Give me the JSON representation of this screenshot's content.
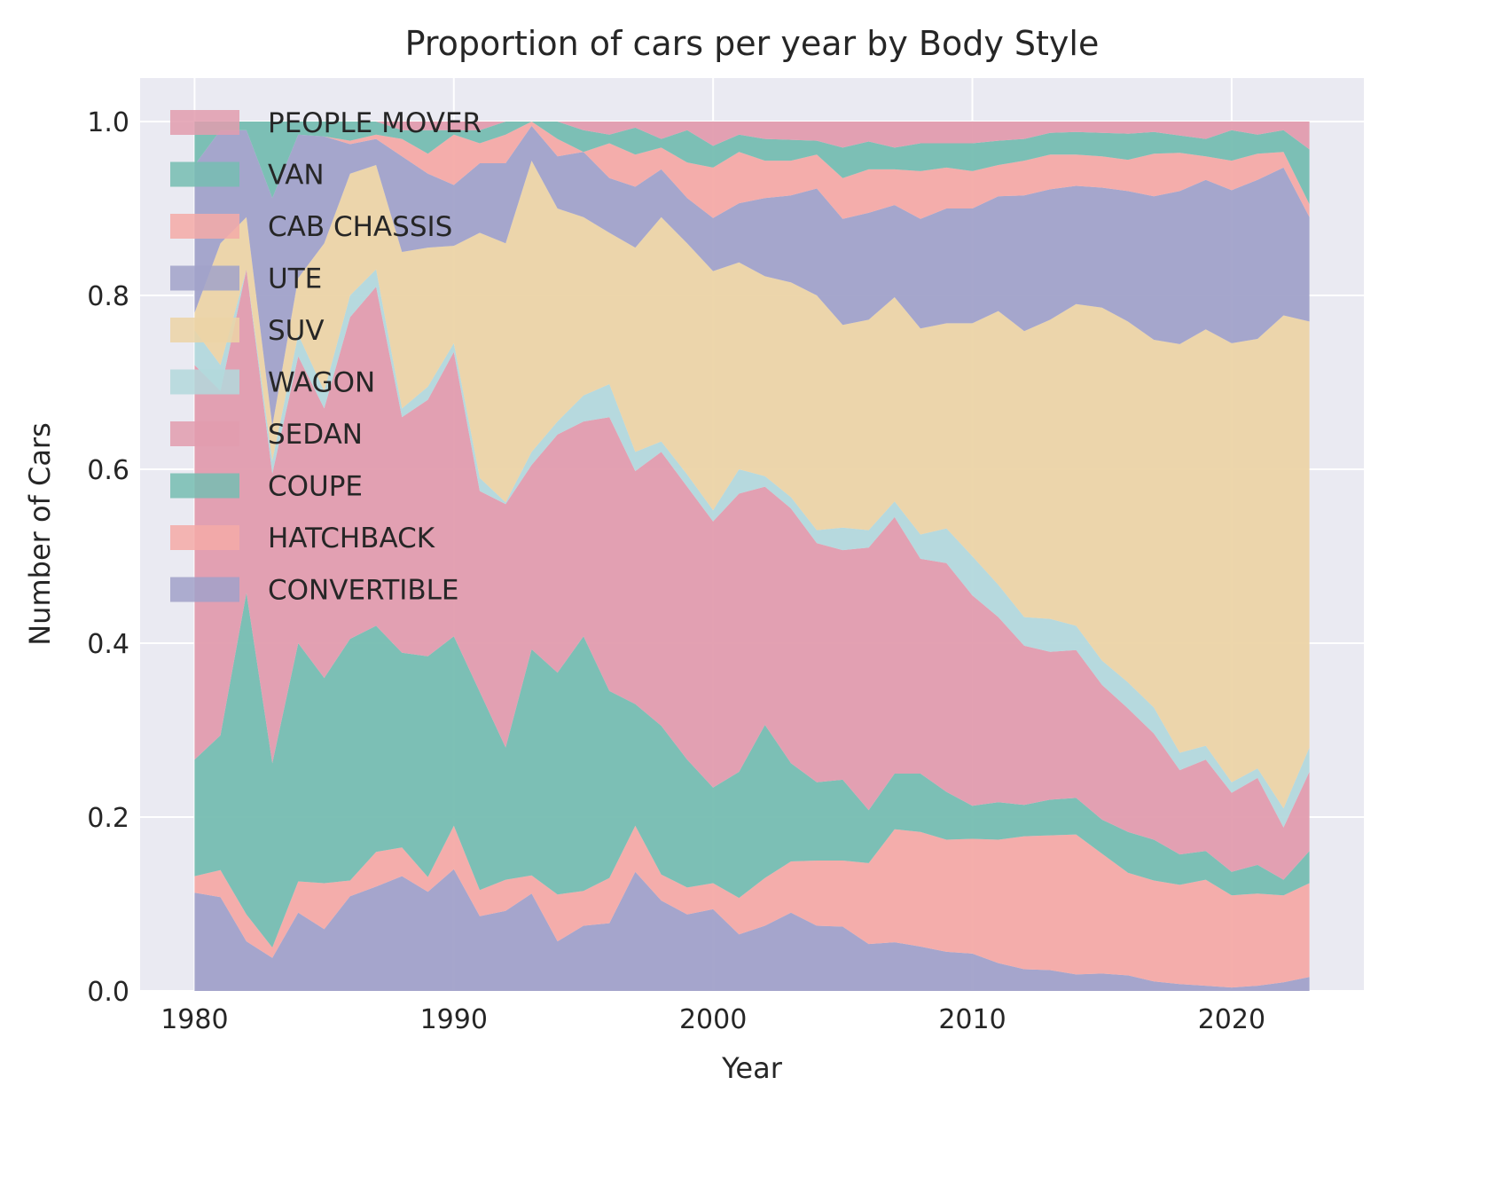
{
  "chart_data": {
    "type": "area",
    "stacked": true,
    "title": "Proportion of cars per year by Body Style",
    "xlabel": "Year",
    "ylabel": "Number of Cars",
    "xlim": [
      1977.9,
      2025.1
    ],
    "ylim": [
      0,
      1.05
    ],
    "xticks": [
      1980,
      1990,
      2000,
      2010,
      2020
    ],
    "yticks": [
      "0.0",
      "0.2",
      "0.4",
      "0.6",
      "0.8",
      "1.0"
    ],
    "grid": true,
    "legend_placement": "upper-left",
    "x": [
      1980,
      1981,
      1982,
      1983,
      1984,
      1985,
      1986,
      1987,
      1988,
      1989,
      1990,
      1991,
      1992,
      1993,
      1994,
      1995,
      1996,
      1997,
      1998,
      1999,
      2000,
      2001,
      2002,
      2003,
      2004,
      2005,
      2006,
      2007,
      2008,
      2009,
      2010,
      2011,
      2012,
      2013,
      2014,
      2015,
      2016,
      2017,
      2018,
      2019,
      2020,
      2021,
      2022,
      2023
    ],
    "series_note_values_are": "stacked upper boundary",
    "series": [
      {
        "name": "CONVERTIBLE",
        "color": "#a1a1c9",
        "upper": [
          0.113,
          0.108,
          0.057,
          0.038,
          0.09,
          0.071,
          0.109,
          0.12,
          0.132,
          0.114,
          0.14,
          0.086,
          0.092,
          0.112,
          0.057,
          0.075,
          0.078,
          0.137,
          0.104,
          0.088,
          0.094,
          0.065,
          0.075,
          0.09,
          0.075,
          0.074,
          0.054,
          0.056,
          0.051,
          0.045,
          0.043,
          0.032,
          0.025,
          0.024,
          0.019,
          0.02,
          0.018,
          0.011,
          0.008,
          0.006,
          0.004,
          0.006,
          0.01,
          0.016
        ]
      },
      {
        "name": "HATCHBACK",
        "color": "#f4aaa7",
        "upper": [
          0.132,
          0.139,
          0.088,
          0.05,
          0.126,
          0.124,
          0.127,
          0.16,
          0.165,
          0.131,
          0.19,
          0.116,
          0.128,
          0.133,
          0.111,
          0.115,
          0.13,
          0.19,
          0.134,
          0.119,
          0.124,
          0.107,
          0.13,
          0.149,
          0.15,
          0.15,
          0.147,
          0.186,
          0.183,
          0.174,
          0.175,
          0.174,
          0.178,
          0.179,
          0.18,
          0.158,
          0.136,
          0.127,
          0.122,
          0.128,
          0.11,
          0.112,
          0.11,
          0.124
        ]
      },
      {
        "name": "COUPE",
        "color": "#76bdb1",
        "upper": [
          0.266,
          0.294,
          0.458,
          0.262,
          0.4,
          0.36,
          0.405,
          0.42,
          0.389,
          0.385,
          0.408,
          0.344,
          0.28,
          0.393,
          0.366,
          0.408,
          0.345,
          0.33,
          0.305,
          0.266,
          0.234,
          0.252,
          0.306,
          0.262,
          0.24,
          0.243,
          0.208,
          0.25,
          0.25,
          0.229,
          0.213,
          0.217,
          0.214,
          0.22,
          0.222,
          0.197,
          0.183,
          0.174,
          0.157,
          0.161,
          0.137,
          0.145,
          0.128,
          0.161
        ]
      },
      {
        "name": "SEDAN",
        "color": "#e29cae",
        "upper": [
          0.72,
          0.69,
          0.83,
          0.595,
          0.73,
          0.67,
          0.775,
          0.81,
          0.66,
          0.68,
          0.735,
          0.575,
          0.56,
          0.605,
          0.64,
          0.655,
          0.66,
          0.598,
          0.62,
          0.58,
          0.54,
          0.572,
          0.58,
          0.555,
          0.515,
          0.507,
          0.51,
          0.545,
          0.497,
          0.492,
          0.455,
          0.43,
          0.397,
          0.39,
          0.392,
          0.352,
          0.325,
          0.296,
          0.254,
          0.266,
          0.228,
          0.245,
          0.188,
          0.252
        ]
      },
      {
        "name": "WAGON",
        "color": "#b3d8dc",
        "upper": [
          0.76,
          0.72,
          0.83,
          0.61,
          0.755,
          0.69,
          0.8,
          0.83,
          0.67,
          0.695,
          0.745,
          0.59,
          0.562,
          0.62,
          0.655,
          0.685,
          0.698,
          0.62,
          0.632,
          0.594,
          0.553,
          0.6,
          0.592,
          0.568,
          0.53,
          0.533,
          0.53,
          0.563,
          0.525,
          0.532,
          0.5,
          0.467,
          0.43,
          0.428,
          0.42,
          0.38,
          0.355,
          0.326,
          0.274,
          0.282,
          0.24,
          0.256,
          0.21,
          0.28
        ]
      },
      {
        "name": "SUV",
        "color": "#ecd4a6",
        "upper": [
          0.78,
          0.86,
          0.89,
          0.65,
          0.82,
          0.86,
          0.94,
          0.95,
          0.85,
          0.855,
          0.857,
          0.872,
          0.86,
          0.955,
          0.9,
          0.89,
          0.872,
          0.855,
          0.89,
          0.86,
          0.828,
          0.838,
          0.822,
          0.815,
          0.8,
          0.766,
          0.772,
          0.798,
          0.762,
          0.768,
          0.768,
          0.782,
          0.759,
          0.772,
          0.79,
          0.786,
          0.77,
          0.749,
          0.744,
          0.761,
          0.745,
          0.75,
          0.777,
          0.77
        ]
      },
      {
        "name": "UTE",
        "color": "#a1a2c9",
        "upper": [
          0.95,
          0.99,
          0.99,
          0.912,
          0.985,
          0.983,
          0.974,
          0.98,
          0.96,
          0.94,
          0.927,
          0.952,
          0.952,
          0.995,
          0.96,
          0.965,
          0.935,
          0.925,
          0.945,
          0.912,
          0.889,
          0.906,
          0.912,
          0.915,
          0.923,
          0.888,
          0.895,
          0.904,
          0.888,
          0.9,
          0.9,
          0.914,
          0.915,
          0.922,
          0.926,
          0.924,
          0.92,
          0.914,
          0.92,
          0.933,
          0.921,
          0.933,
          0.947,
          0.89
        ]
      },
      {
        "name": "CAB CHASSIS",
        "color": "#f4aaa7",
        "upper": [
          0.95,
          0.99,
          0.99,
          0.912,
          0.985,
          0.983,
          0.978,
          0.985,
          0.98,
          0.963,
          0.985,
          0.975,
          0.985,
          1.0,
          0.98,
          0.965,
          0.975,
          0.962,
          0.97,
          0.953,
          0.947,
          0.965,
          0.955,
          0.955,
          0.962,
          0.935,
          0.945,
          0.945,
          0.943,
          0.947,
          0.943,
          0.95,
          0.955,
          0.962,
          0.962,
          0.96,
          0.956,
          0.963,
          0.964,
          0.96,
          0.955,
          0.963,
          0.965,
          0.905
        ]
      },
      {
        "name": "VAN",
        "color": "#76bdb1",
        "upper": [
          1.0,
          1.0,
          1.0,
          1.0,
          1.0,
          1.0,
          1.0,
          1.0,
          0.99,
          0.99,
          0.99,
          0.99,
          1.0,
          1.0,
          1.0,
          0.99,
          0.985,
          0.993,
          0.98,
          0.99,
          0.972,
          0.985,
          0.98,
          0.979,
          0.978,
          0.97,
          0.977,
          0.97,
          0.975,
          0.975,
          0.975,
          0.978,
          0.98,
          0.987,
          0.988,
          0.987,
          0.986,
          0.988,
          0.984,
          0.98,
          0.99,
          0.985,
          0.99,
          0.968
        ]
      },
      {
        "name": "PEOPLE MOVER",
        "color": "#e29cae",
        "upper": [
          1,
          1,
          1,
          1,
          1,
          1,
          1,
          1,
          1,
          1,
          1,
          1,
          1,
          1,
          1,
          1,
          1,
          1,
          1,
          1,
          1,
          1,
          1,
          1,
          1,
          1,
          1,
          1,
          1,
          1,
          1,
          1,
          1,
          1,
          1,
          1,
          1,
          1,
          1,
          1,
          1,
          1,
          1,
          1
        ]
      }
    ],
    "legend_order": [
      "PEOPLE MOVER",
      "VAN",
      "CAB CHASSIS",
      "UTE",
      "SUV",
      "WAGON",
      "SEDAN",
      "COUPE",
      "HATCHBACK",
      "CONVERTIBLE"
    ]
  }
}
